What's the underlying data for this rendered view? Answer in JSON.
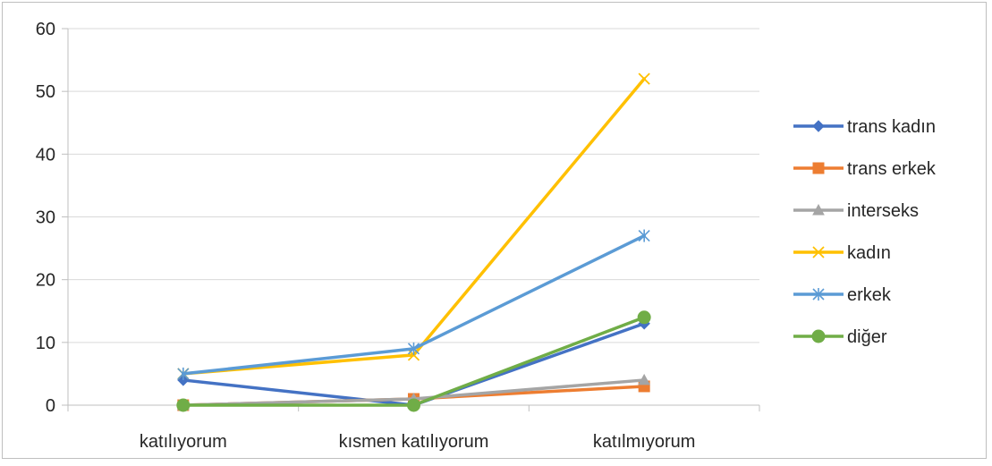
{
  "chart_data": {
    "type": "line",
    "title": "",
    "xlabel": "",
    "ylabel": "",
    "categories": [
      "katılıyorum",
      "kısmen katılıyorum",
      "katılmıyorum"
    ],
    "ylim": [
      0,
      60
    ],
    "yticks": [
      0,
      10,
      20,
      30,
      40,
      50,
      60
    ],
    "grid": true,
    "legend_position": "right",
    "series": [
      {
        "name": "trans  kadın",
        "values": [
          4,
          0,
          13
        ],
        "color": "#4472c4",
        "marker": "diamond"
      },
      {
        "name": "trans erkek",
        "values": [
          0,
          1,
          3
        ],
        "color": "#ed7d31",
        "marker": "square"
      },
      {
        "name": "interseks",
        "values": [
          0,
          1,
          4
        ],
        "color": "#a5a5a5",
        "marker": "triangle"
      },
      {
        "name": "kadın",
        "values": [
          5,
          8,
          52
        ],
        "color": "#ffc000",
        "marker": "x"
      },
      {
        "name": "erkek",
        "values": [
          5,
          9,
          27
        ],
        "color": "#5b9bd5",
        "marker": "star"
      },
      {
        "name": "diğer",
        "values": [
          0,
          0,
          14
        ],
        "color": "#70ad47",
        "marker": "circle"
      }
    ]
  }
}
